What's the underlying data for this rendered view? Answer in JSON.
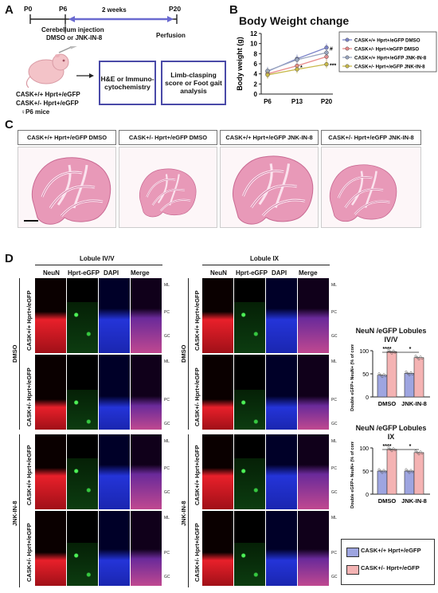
{
  "panel_a": {
    "letter": "A",
    "timeline": {
      "p0": "P0",
      "p6": "P6",
      "span": "2 weeks",
      "p20": "P20"
    },
    "injection": "Cerebellum injection",
    "treatment": "DMSO or JNK-IN-8",
    "perfusion": "Perfusion",
    "mouse_line1": "CASK+/+ Hprt+/eGFP",
    "mouse_line2": "CASK+/- Hprt+/eGFP",
    "mouse_line3": "♀P6 mice",
    "box1": "H&E or Immuno- cytochemistry",
    "box2": "Limb-clasping score or Foot gait analysis"
  },
  "panel_b": {
    "letter": "B",
    "title": "Body Weight change",
    "ylabel": "Body weight (g)",
    "legend": [
      "CASK+/+ Hprt+/eGFP DMSO",
      "CASK+/- Hprt+/eGFP DMSO",
      "CASK+/+ Hprt+/eGFP JNK-IN-8",
      "CASK+/- Hprt+/eGFP JNK-IN-8"
    ],
    "annotations": [
      "#",
      "*",
      "***"
    ]
  },
  "chart_data": [
    {
      "type": "line",
      "title": "Body Weight change",
      "xlabel": "",
      "ylabel": "Body weight (g)",
      "categories": [
        "P6",
        "P13",
        "P20"
      ],
      "ylim": [
        0,
        12
      ],
      "yticks": [
        0,
        2,
        4,
        6,
        8,
        10,
        12
      ],
      "series": [
        {
          "name": "CASK+/+ Hprt+/eGFP DMSO",
          "values": [
            4.5,
            7.0,
            9.2
          ],
          "color": "#7a82c8"
        },
        {
          "name": "CASK+/- Hprt+/eGFP DMSO",
          "values": [
            4.0,
            5.6,
            7.4
          ],
          "color": "#e88a8a"
        },
        {
          "name": "CASK+/+ Hprt+/eGFP JNK-IN-8",
          "values": [
            4.6,
            6.8,
            8.2
          ],
          "color": "#9aa6c0"
        },
        {
          "name": "CASK+/- Hprt+/eGFP JNK-IN-8",
          "values": [
            3.8,
            4.9,
            5.9
          ],
          "color": "#c8b94a"
        }
      ]
    },
    {
      "type": "bar",
      "title": "NeuN /eGFP Lobules IV/V",
      "ylabel": "Double eGFP+ NeuN+ (% of control)",
      "categories": [
        "DMSO",
        "JNK-IN-8"
      ],
      "ylim": [
        0,
        100
      ],
      "yticks": [
        0,
        50,
        100
      ],
      "series": [
        {
          "name": "CASK+/+ Hprt+/eGFP",
          "values": [
            47,
            51
          ],
          "color": "#9ea5e0"
        },
        {
          "name": "CASK+/- Hprt+/eGFP",
          "values": [
            98,
            85
          ],
          "color": "#f4b3b3"
        }
      ],
      "significance": [
        "****",
        "*"
      ]
    },
    {
      "type": "bar",
      "title": "NeuN /eGFP Lobules IX",
      "ylabel": "Double eGFP+ NeuN+ (% of control)",
      "categories": [
        "DMSO",
        "JNK-IN-8"
      ],
      "ylim": [
        0,
        100
      ],
      "yticks": [
        0,
        50,
        100
      ],
      "series": [
        {
          "name": "CASK+/+ Hprt+/eGFP",
          "values": [
            50,
            50
          ],
          "color": "#9ea5e0"
        },
        {
          "name": "CASK+/- Hprt+/eGFP",
          "values": [
            97,
            90
          ],
          "color": "#f4b3b3"
        }
      ],
      "significance": [
        "****",
        "*"
      ]
    }
  ],
  "panel_c": {
    "letter": "C",
    "labels": [
      "CASK+/+ Hprt+/eGFP DMSO",
      "CASK+/- Hprt+/eGFP DMSO",
      "CASK+/+ Hprt+/eGFP JNK-IN-8",
      "CASK+/- Hprt+/eGFP JNK-IN-8"
    ]
  },
  "panel_d": {
    "letter": "D",
    "lobule_left": "Lobule IV/V",
    "lobule_right": "Lobule IX",
    "columns": [
      "NeuN",
      "Hprt-eGFP",
      "DAPI",
      "Merge"
    ],
    "layers": [
      "ML",
      "PC",
      "GC"
    ],
    "row_groups": [
      "DMSO",
      "JNK-IN-8"
    ],
    "rows": [
      "CASK+/+ Hprt+/eGFP",
      "CASK+/- Hprt+/eGFP",
      "CASK+/+ Hprt+/eGFP",
      "CASK+/- Hprt+/eGFP"
    ],
    "legend": [
      "CASK+/+ Hprt+/eGFP",
      "CASK+/- Hprt+/eGFP"
    ]
  }
}
